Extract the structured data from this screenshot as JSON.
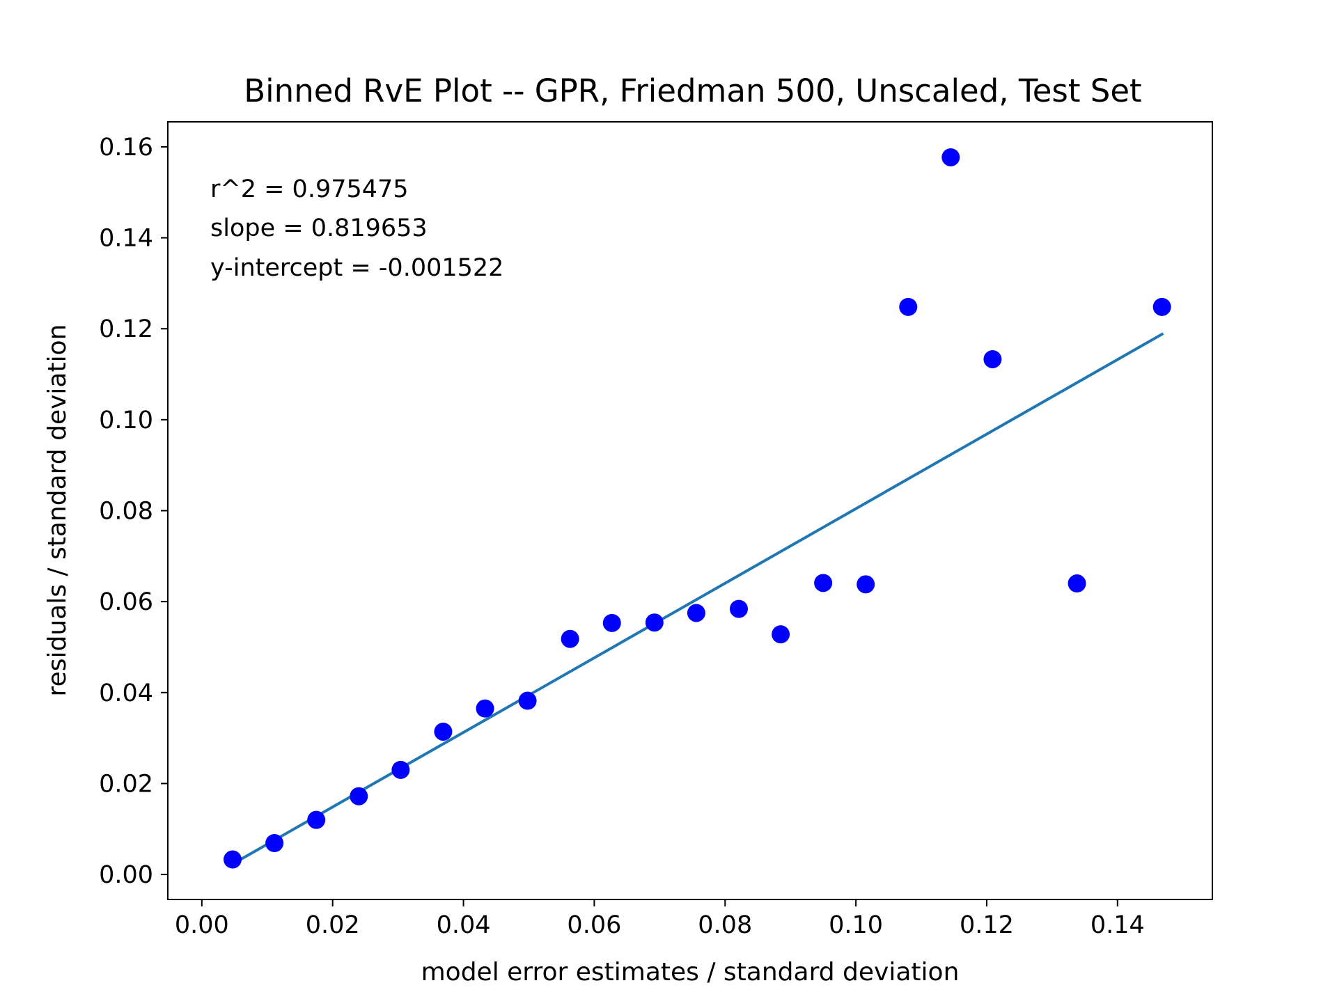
{
  "chart_data": {
    "type": "scatter",
    "title": "Binned RvE Plot -- GPR, Friedman 500, Unscaled, Test Set",
    "xlabel": "model error estimates / standard deviation",
    "ylabel": "residuals / standard deviation",
    "xlim": [
      -0.0052,
      0.1545
    ],
    "ylim": [
      -0.0055,
      0.1655
    ],
    "x_ticks": [
      "0.00",
      "0.02",
      "0.04",
      "0.06",
      "0.08",
      "0.10",
      "0.12",
      "0.14"
    ],
    "y_ticks": [
      "0.00",
      "0.02",
      "0.04",
      "0.06",
      "0.08",
      "0.10",
      "0.12",
      "0.14",
      "0.16"
    ],
    "grid": false,
    "annotations": [
      "r^2 = 0.975475",
      "slope = 0.819653",
      "y-intercept = -0.001522"
    ],
    "series": [
      {
        "type": "scatter",
        "color": "#0000ff",
        "x": [
          0.0047,
          0.0111,
          0.0175,
          0.024,
          0.0304,
          0.0369,
          0.0433,
          0.0498,
          0.0563,
          0.0627,
          0.0692,
          0.0756,
          0.0821,
          0.0885,
          0.095,
          0.1015,
          0.108,
          0.1145,
          0.1209,
          0.1338,
          0.1468
        ],
        "y": [
          0.0033,
          0.0069,
          0.012,
          0.0172,
          0.023,
          0.0314,
          0.0365,
          0.0382,
          0.0518,
          0.0553,
          0.0554,
          0.0575,
          0.0584,
          0.0528,
          0.0641,
          0.0638,
          0.1248,
          0.1577,
          0.1133,
          0.064,
          0.1248
        ]
      },
      {
        "type": "line",
        "color": "#1f77b4",
        "x": [
          0.0047,
          0.1468
        ],
        "y": [
          0.0023,
          0.1188
        ]
      }
    ]
  }
}
